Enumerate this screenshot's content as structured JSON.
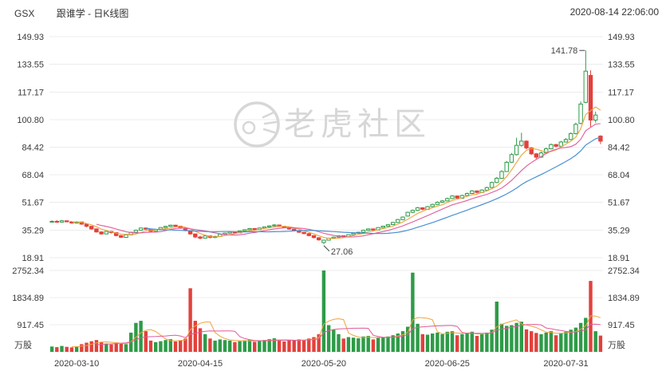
{
  "header": {
    "symbol": "GSX",
    "title": "跟谁学 - 日K线图",
    "timestamp": "2020-08-14 22:06:00"
  },
  "watermark": {
    "text": "老虎社区"
  },
  "chart_data": {
    "type": "candlestick",
    "title": "GSX 跟谁学 - 日K线图",
    "price_axis": {
      "ticks": [
        "149.93",
        "133.55",
        "117.17",
        "100.80",
        "84.42",
        "68.04",
        "51.67",
        "35.29",
        "18.91"
      ]
    },
    "volume_axis": {
      "ticks": [
        "2752.34",
        "1834.89",
        "917.45"
      ],
      "unit": "万股"
    },
    "x_axis": {
      "tick_labels": [
        "2020-03-10",
        "2020-04-15",
        "2020-05-20",
        "2020-06-25",
        "2020-07-31"
      ],
      "tick_indices": [
        5,
        30,
        55,
        80,
        104
      ]
    },
    "annotations": {
      "high": {
        "label": "141.78",
        "index": 108,
        "price": 141.78
      },
      "low": {
        "label": "27.06",
        "index": 55,
        "price": 27.06
      }
    },
    "colors": {
      "up": "#2e9b48",
      "down": "#e2413c",
      "ma5": "#f0a23d",
      "ma10": "#e05b9a",
      "ma20": "#4a90d2",
      "grid": "#ececec",
      "axis_text": "#3a3a3a",
      "watermark": "#d7d7d7",
      "annotation": "#444444"
    },
    "candles": [
      [
        40.2,
        41.0,
        39.8,
        40.5
      ],
      [
        40.5,
        41.2,
        39.6,
        40.0
      ],
      [
        40.0,
        41.3,
        39.8,
        40.8
      ],
      [
        40.8,
        41.0,
        39.9,
        40.2
      ],
      [
        40.2,
        40.6,
        39.0,
        39.5
      ],
      [
        39.5,
        40.6,
        39.2,
        40.1
      ],
      [
        40.1,
        40.3,
        38.4,
        38.8
      ],
      [
        38.8,
        39.2,
        37.0,
        37.5
      ],
      [
        37.5,
        37.8,
        35.5,
        36.0
      ],
      [
        36.0,
        36.3,
        33.8,
        34.2
      ],
      [
        34.2,
        34.6,
        32.5,
        33.0
      ],
      [
        33.0,
        34.9,
        32.8,
        34.5
      ],
      [
        34.5,
        34.8,
        33.3,
        33.8
      ],
      [
        33.8,
        34.0,
        31.6,
        32.0
      ],
      [
        32.0,
        32.4,
        30.6,
        31.0
      ],
      [
        31.0,
        32.9,
        30.8,
        32.5
      ],
      [
        32.5,
        34.3,
        32.2,
        34.0
      ],
      [
        34.0,
        35.6,
        33.7,
        35.2
      ],
      [
        35.2,
        36.8,
        34.9,
        36.5
      ],
      [
        36.5,
        36.9,
        35.4,
        35.8
      ],
      [
        35.8,
        36.0,
        34.2,
        34.6
      ],
      [
        34.6,
        35.8,
        34.3,
        35.5
      ],
      [
        35.5,
        37.0,
        35.2,
        36.8
      ],
      [
        36.8,
        37.8,
        36.4,
        37.5
      ],
      [
        37.5,
        38.5,
        37.1,
        38.2
      ],
      [
        38.2,
        38.4,
        37.2,
        37.6
      ],
      [
        37.6,
        37.9,
        36.1,
        36.5
      ],
      [
        36.5,
        36.8,
        34.6,
        35.0
      ],
      [
        35.0,
        35.2,
        32.6,
        33.0
      ],
      [
        33.0,
        33.2,
        30.5,
        31.2
      ],
      [
        31.2,
        31.9,
        29.8,
        30.5
      ],
      [
        30.5,
        32.0,
        30.2,
        31.8
      ],
      [
        31.8,
        32.0,
        30.4,
        30.9
      ],
      [
        30.9,
        31.9,
        30.5,
        31.5
      ],
      [
        31.5,
        33.0,
        31.2,
        32.8
      ],
      [
        32.8,
        33.8,
        32.5,
        33.5
      ],
      [
        33.5,
        34.5,
        33.2,
        34.2
      ],
      [
        34.2,
        34.4,
        33.2,
        33.6
      ],
      [
        33.6,
        35.0,
        33.4,
        34.8
      ],
      [
        34.8,
        35.8,
        34.5,
        35.5
      ],
      [
        35.5,
        36.5,
        35.2,
        36.2
      ],
      [
        36.2,
        36.4,
        35.2,
        35.6
      ],
      [
        35.6,
        36.8,
        35.3,
        36.5
      ],
      [
        36.5,
        37.5,
        36.2,
        37.2
      ],
      [
        37.2,
        38.1,
        36.9,
        37.8
      ],
      [
        37.8,
        38.8,
        37.5,
        38.3
      ],
      [
        38.3,
        38.5,
        37.1,
        37.5
      ],
      [
        37.5,
        37.8,
        36.4,
        36.8
      ],
      [
        36.8,
        37.0,
        35.5,
        35.9
      ],
      [
        35.9,
        36.2,
        34.6,
        35.0
      ],
      [
        35.0,
        35.3,
        33.6,
        34.0
      ],
      [
        34.0,
        34.3,
        32.8,
        33.2
      ],
      [
        33.2,
        33.5,
        31.6,
        32.0
      ],
      [
        32.0,
        32.2,
        30.4,
        30.8
      ],
      [
        30.8,
        31.0,
        29.0,
        29.5
      ],
      [
        27.9,
        29.6,
        27.06,
        29.3
      ],
      [
        29.3,
        30.8,
        29.1,
        30.5
      ],
      [
        30.5,
        31.4,
        30.2,
        31.1
      ],
      [
        31.1,
        32.2,
        30.9,
        31.9
      ],
      [
        31.9,
        32.1,
        30.9,
        31.3
      ],
      [
        31.3,
        32.8,
        31.1,
        32.6
      ],
      [
        32.6,
        33.7,
        32.3,
        33.4
      ],
      [
        33.4,
        34.3,
        33.1,
        34.0
      ],
      [
        34.0,
        35.5,
        33.8,
        35.2
      ],
      [
        35.2,
        36.3,
        34.9,
        36.0
      ],
      [
        36.0,
        36.2,
        35.0,
        35.4
      ],
      [
        35.4,
        37.0,
        35.2,
        36.8
      ],
      [
        36.8,
        37.9,
        36.5,
        37.6
      ],
      [
        37.6,
        38.8,
        37.3,
        38.5
      ],
      [
        38.5,
        40.1,
        38.3,
        39.8
      ],
      [
        39.8,
        41.9,
        39.6,
        41.5
      ],
      [
        41.5,
        43.4,
        41.2,
        43.0
      ],
      [
        43.6,
        46.2,
        43.3,
        45.8
      ],
      [
        45.8,
        47.5,
        45.3,
        47.0
      ],
      [
        47.0,
        49.0,
        46.6,
        48.5
      ],
      [
        48.5,
        48.8,
        47.0,
        47.6
      ],
      [
        47.6,
        49.6,
        47.3,
        49.2
      ],
      [
        49.2,
        51.0,
        48.9,
        50.5
      ],
      [
        50.5,
        52.3,
        50.2,
        51.8
      ],
      [
        51.8,
        53.1,
        51.4,
        52.6
      ],
      [
        52.6,
        54.5,
        52.3,
        54.0
      ],
      [
        54.0,
        56.0,
        53.7,
        55.5
      ],
      [
        55.5,
        55.8,
        53.8,
        54.2
      ],
      [
        54.2,
        56.3,
        54.0,
        55.8
      ],
      [
        55.8,
        57.5,
        55.5,
        57.0
      ],
      [
        57.0,
        59.0,
        56.7,
        58.5
      ],
      [
        58.5,
        58.8,
        57.1,
        57.6
      ],
      [
        57.6,
        59.5,
        57.3,
        59.0
      ],
      [
        59.0,
        61.0,
        58.7,
        60.5
      ],
      [
        60.5,
        64.0,
        60.2,
        63.5
      ],
      [
        63.5,
        66.8,
        63.1,
        66.0
      ],
      [
        66.0,
        70.8,
        65.7,
        70.0
      ],
      [
        70.0,
        76.3,
        69.7,
        75.5
      ],
      [
        75.5,
        81.0,
        75.0,
        80.0
      ],
      [
        80.0,
        90.0,
        79.5,
        85.5
      ],
      [
        85.5,
        93.0,
        84.8,
        88.0
      ],
      [
        88.0,
        88.5,
        83.2,
        84.0
      ],
      [
        84.0,
        84.5,
        79.8,
        80.5
      ],
      [
        80.5,
        81.0,
        77.5,
        78.5
      ],
      [
        78.5,
        81.8,
        78.2,
        81.0
      ],
      [
        81.0,
        84.2,
        80.7,
        83.5
      ],
      [
        83.5,
        86.6,
        83.2,
        86.0
      ],
      [
        86.0,
        86.4,
        84.3,
        85.0
      ],
      [
        85.0,
        88.2,
        84.7,
        87.5
      ],
      [
        87.5,
        89.8,
        87.2,
        89.0
      ],
      [
        89.0,
        93.2,
        88.6,
        92.5
      ],
      [
        92.5,
        99.0,
        92.0,
        98.0
      ],
      [
        98.5,
        111.5,
        98.0,
        110.0
      ],
      [
        111.0,
        141.78,
        110.5,
        129.5
      ],
      [
        127.0,
        130.0,
        96.5,
        100.5
      ],
      [
        100.5,
        105.5,
        99.0,
        103.5
      ],
      [
        91.0,
        91.5,
        86.2,
        88.0
      ]
    ],
    "volumes": [
      180,
      160,
      200,
      170,
      150,
      190,
      260,
      310,
      360,
      400,
      330,
      280,
      250,
      300,
      270,
      260,
      650,
      980,
      1050,
      700,
      380,
      330,
      360,
      400,
      430,
      350,
      380,
      450,
      2150,
      1050,
      800,
      600,
      450,
      380,
      420,
      400,
      380,
      330,
      360,
      390,
      410,
      340,
      370,
      400,
      430,
      460,
      380,
      350,
      400,
      380,
      420,
      400,
      450,
      500,
      600,
      2752,
      900,
      750,
      600,
      450,
      500,
      480,
      460,
      520,
      540,
      420,
      480,
      500,
      520,
      560,
      620,
      700,
      850,
      2680,
      950,
      600,
      580,
      620,
      650,
      600,
      680,
      700,
      560,
      600,
      640,
      680,
      540,
      600,
      650,
      750,
      1700,
      950,
      880,
      900,
      980,
      1020,
      760,
      700,
      640,
      600,
      650,
      700,
      560,
      620,
      680,
      750,
      820,
      980,
      1150,
      2400,
      700,
      550
    ]
  }
}
